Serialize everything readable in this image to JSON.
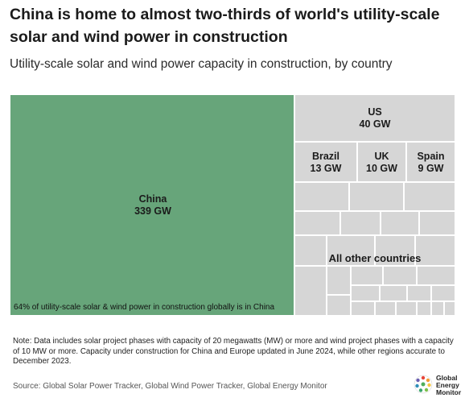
{
  "header": {
    "title": "China is home to almost two-thirds of world's utility-scale solar and wind power in construction",
    "subtitle": "Utility-scale solar and wind power capacity in construction, by country"
  },
  "chart_data": {
    "type": "treemap",
    "unit": "GW",
    "items": [
      {
        "name": "China",
        "value": 339,
        "label": "339 GW",
        "color": "#67a57a"
      },
      {
        "name": "US",
        "value": 40,
        "label": "40 GW",
        "color": "#d6d6d6"
      },
      {
        "name": "Brazil",
        "value": 13,
        "label": "13 GW",
        "color": "#d6d6d6"
      },
      {
        "name": "UK",
        "value": 10,
        "label": "10 GW",
        "color": "#d6d6d6"
      },
      {
        "name": "Spain",
        "value": 9,
        "label": "9 GW",
        "color": "#d6d6d6"
      },
      {
        "name": "All other countries",
        "label": "",
        "color": "#d6d6d6"
      }
    ],
    "annotation": "64% of utility-scale solar & wind power in construction globally is in China"
  },
  "footer": {
    "note": "Note: Data includes solar project phases with capacity of 20 megawatts (MW) or more and wind project phases with a capacity of 10 MW or more. Capacity under construction for China and Europe updated in June 2024, while other regions accurate to December 2023.",
    "source": "Source: Global Solar Power Tracker, Global Wind Power Tracker, Global Energy Monitor",
    "logo_line1": "Global",
    "logo_line2": "Energy",
    "logo_line3": "Monitor"
  }
}
